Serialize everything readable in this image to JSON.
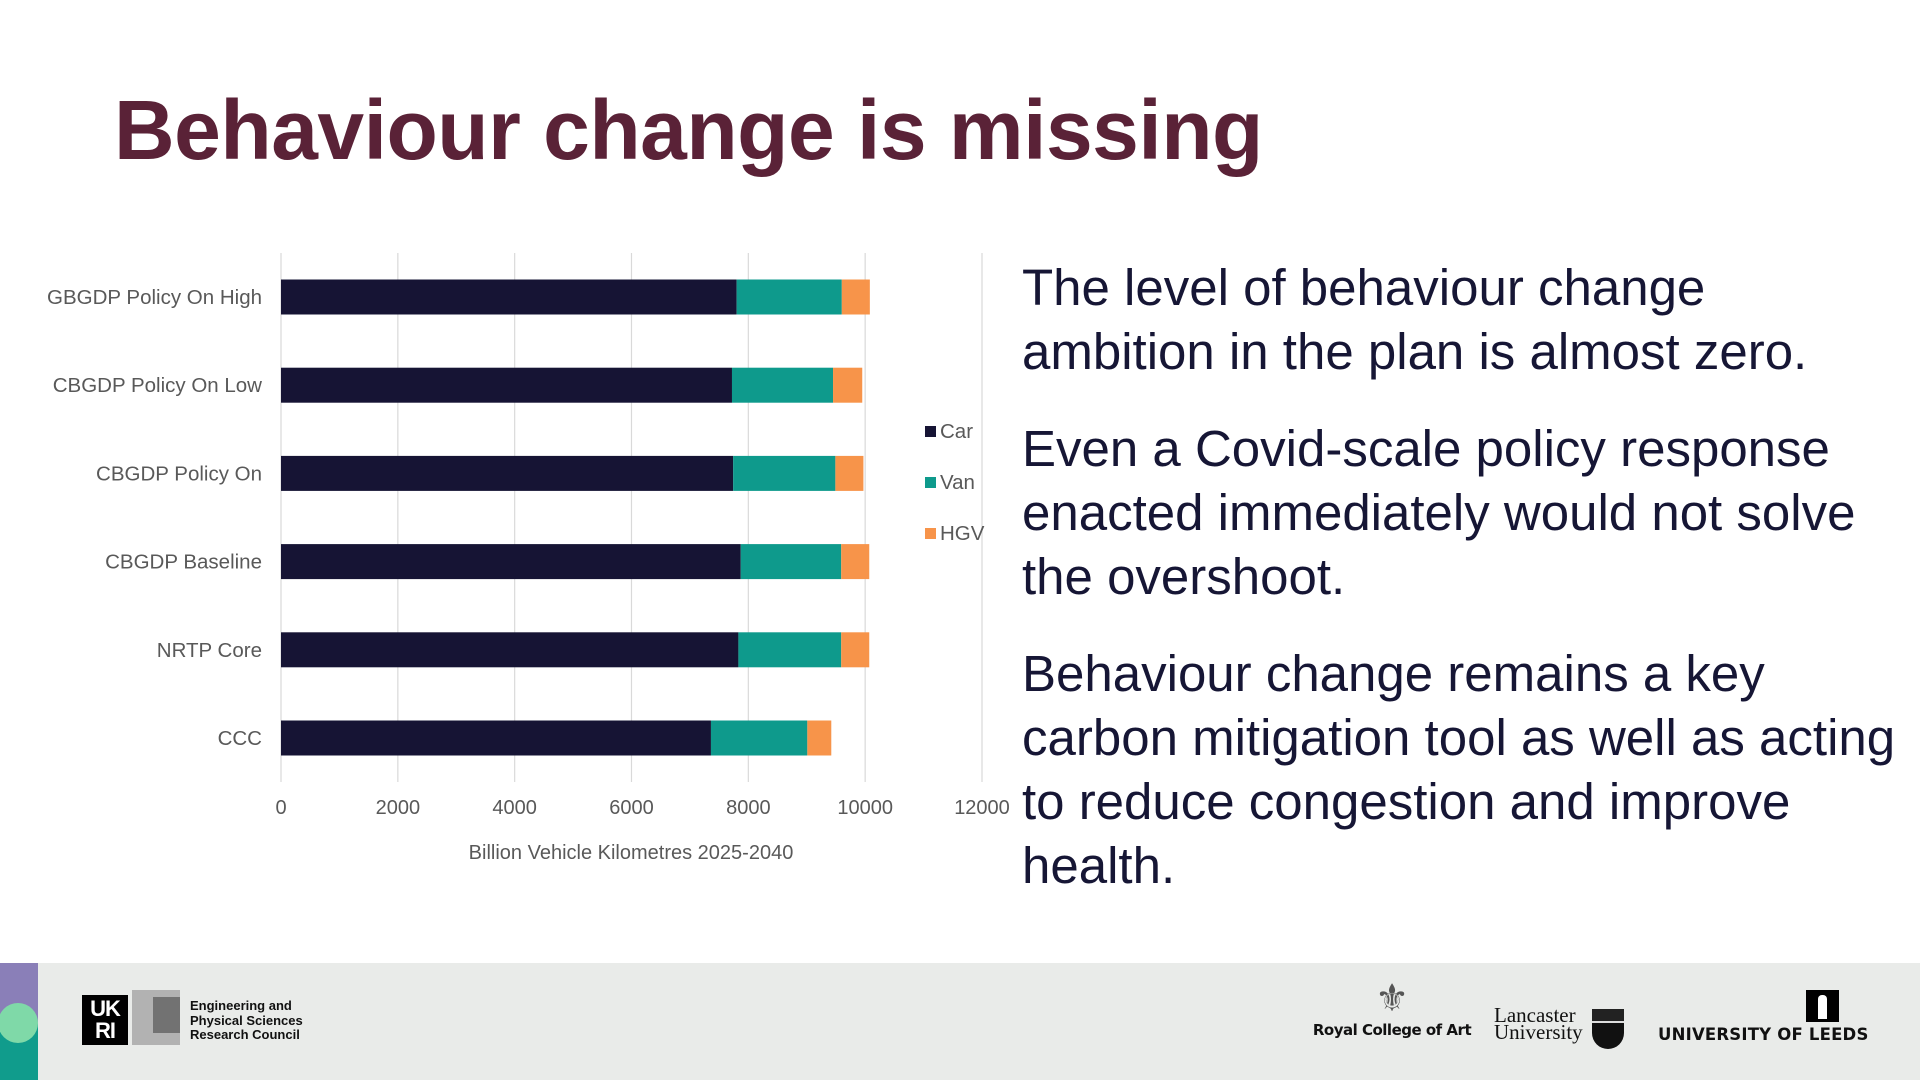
{
  "slide": {
    "title": "Behaviour change is missing",
    "paragraphs": [
      "The level of behaviour change ambition in the plan is almost zero.",
      "Even a Covid-scale policy response enacted immediately would not solve the overshoot.",
      "Behaviour change remains a key carbon mitigation tool as well as acting to reduce congestion and improve health."
    ],
    "title_color": "#5a2237",
    "text_color": "#161635"
  },
  "footer": {
    "ukri_logo_text": "UK RI",
    "epsrc_lines": [
      "Engineering and",
      "Physical Sciences",
      "Research Council"
    ],
    "rca_crest_icon": "royal-crest-icon",
    "rca_name": "Royal College of Art",
    "lancaster_lines": [
      "Lancaster",
      "University"
    ],
    "leeds_name": "UNIVERSITY OF LEEDS"
  },
  "chart_data": {
    "type": "bar",
    "orientation": "horizontal",
    "stacked": true,
    "title": "",
    "xlabel": "Billion Vehicle Kilometres 2025-2040",
    "ylabel": "",
    "xlim": [
      0,
      12000
    ],
    "xticks": [
      0,
      2000,
      4000,
      6000,
      8000,
      10000,
      12000
    ],
    "grid": true,
    "legend_position": "right",
    "categories": [
      "GBGDP Policy On High",
      "CBGDP Policy On Low",
      "CBGDP Policy On",
      "CBGDP Baseline",
      "NRTP Core",
      "CCC"
    ],
    "series": [
      {
        "name": "Car",
        "color": "#161434",
        "values": [
          7800,
          7720,
          7740,
          7870,
          7830,
          7360
        ]
      },
      {
        "name": "Van",
        "color": "#0e9a8c",
        "values": [
          1800,
          1730,
          1750,
          1720,
          1760,
          1650
        ]
      },
      {
        "name": "HGV",
        "color": "#f7944a",
        "values": [
          480,
          500,
          480,
          480,
          480,
          410
        ]
      }
    ]
  }
}
